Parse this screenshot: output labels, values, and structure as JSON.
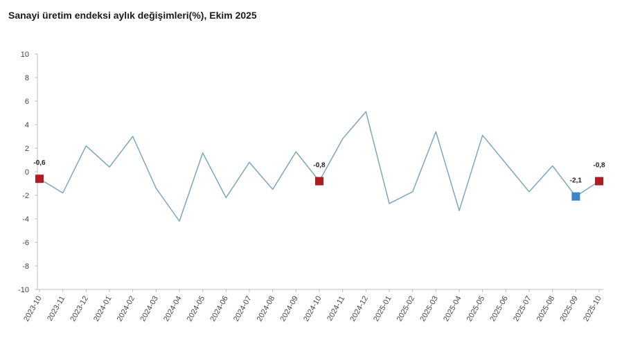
{
  "chart_data": {
    "type": "line",
    "title": "Sanayi üretim endeksi aylık değişimleri(%), Ekim 2025",
    "ylim": [
      -10,
      10
    ],
    "yticks": [
      10,
      8,
      6,
      4,
      2,
      0,
      -2,
      -4,
      -6,
      -8,
      -10
    ],
    "grid": false,
    "series": [
      {
        "color": "#7aa6be",
        "x": [
          "2023-10",
          "2023-11",
          "2023-12",
          "2024-01",
          "2024-02",
          "2024-03",
          "2024-04",
          "2024-05",
          "2024-06",
          "2024-07",
          "2024-08",
          "2024-09",
          "2024-10",
          "2024-11",
          "2024-12",
          "2025-01",
          "2025-02",
          "2025-03",
          "2025-04",
          "2025-05",
          "2025-06",
          "2025-07",
          "2025-08",
          "2025-09",
          "2025-10"
        ],
        "values": [
          -0.6,
          -1.8,
          2.2,
          0.4,
          3.0,
          -1.4,
          -4.2,
          1.6,
          -2.2,
          0.8,
          -1.5,
          1.7,
          -0.8,
          2.8,
          5.1,
          -2.7,
          -1.7,
          3.4,
          -3.3,
          3.1,
          0.7,
          -1.7,
          0.5,
          -2.1,
          -0.8
        ]
      }
    ],
    "highlighted_points": [
      {
        "x": "2023-10",
        "value": -0.6,
        "label": "-0,6",
        "color": "#b01c22"
      },
      {
        "x": "2024-10",
        "value": -0.8,
        "label": "-0,8",
        "color": "#b01c22"
      },
      {
        "x": "2025-09",
        "value": -2.1,
        "label": "-2,1",
        "color": "#3a86c8"
      },
      {
        "x": "2025-10",
        "value": -0.8,
        "label": "-0,8",
        "color": "#b01c22"
      }
    ]
  }
}
